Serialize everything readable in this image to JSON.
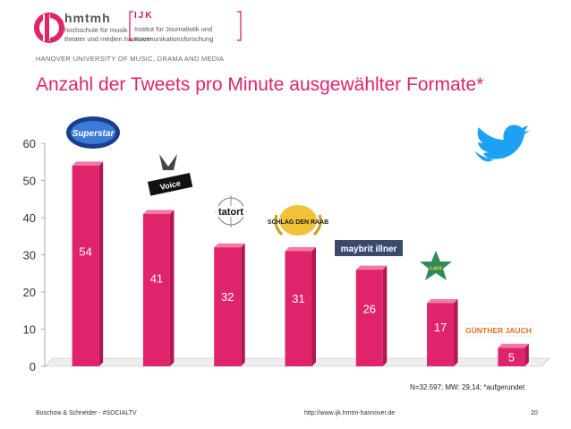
{
  "header": {
    "brand": "hmtmh",
    "school_line1": "hochschule für musik",
    "school_line2": "theater und medien hannover",
    "ijk": "IJK",
    "ijk_line1": "Institut für Journalistik und",
    "ijk_line2": "Kommunikationsforschung",
    "university": "HANOVER UNIVERSITY OF MUSIC, DRAMA AND MEDIA"
  },
  "colors": {
    "accent": "#e0246c",
    "bar_front": "#e0246c",
    "bar_side": "#b31653",
    "bar_top": "#f07aa6",
    "twitter": "#1da1f2"
  },
  "chart_data": {
    "type": "bar",
    "title": "Anzahl der Tweets pro Minute ausgewählter Formate*",
    "categories": [
      "Deutschland sucht den Superstar",
      "The Voice of Germany",
      "Tatort",
      "Schlag den Raab",
      "Maybrit Illner",
      "Lanz",
      "Günther Jauch"
    ],
    "values": [
      54,
      41,
      32,
      31,
      26,
      17,
      5
    ],
    "data_labels": [
      "54",
      "41",
      "32",
      "31",
      "26",
      "17",
      "5"
    ],
    "yticks": [
      "0",
      "10",
      "20",
      "30",
      "40",
      "50",
      "60"
    ],
    "ylim": [
      0,
      60
    ],
    "xlabel": "",
    "ylabel": ""
  },
  "logos": [
    "Superstar",
    "Voice",
    "tatort",
    "SCHLAG DEN RAAB",
    "maybrit illner",
    "Lanz",
    "GÜNTHER JAUCH"
  ],
  "note": "N=32.597; MW: 29,14; *aufgerundet",
  "footer": {
    "left": "Buschow & Schneider - #SOCIALTV",
    "center": "http://www.ijk.hmtm-hannover.de",
    "page": "20"
  }
}
